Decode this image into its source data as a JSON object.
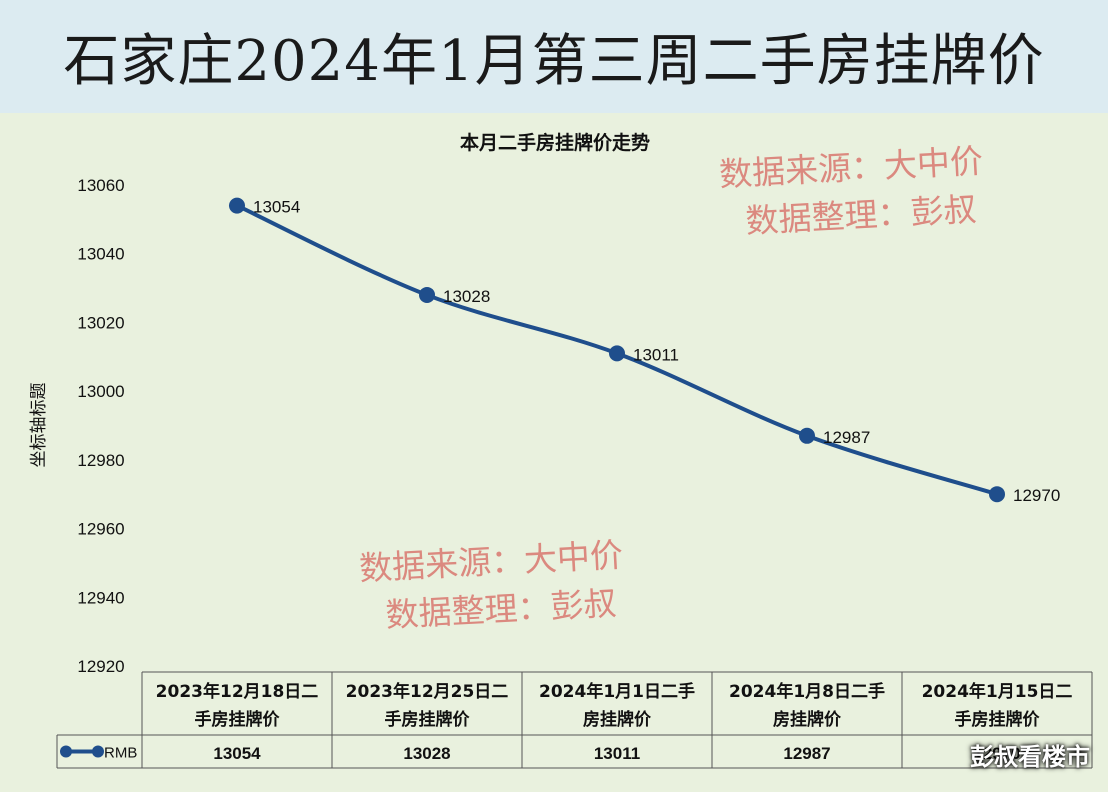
{
  "banner": {
    "title": "石家庄2024年1月第三周二手房挂牌价"
  },
  "watermark": {
    "line1": "数据来源：大中价",
    "line2": "数据整理：彭叔",
    "corner": "彭叔看楼市"
  },
  "chart_data": {
    "type": "line",
    "title": "本月二手房挂牌价走势",
    "ylabel": "坐标轴标题",
    "xlabel": "",
    "categories": [
      [
        "2023年12月18日二",
        "手房挂牌价"
      ],
      [
        "2023年12月25日二",
        "手房挂牌价"
      ],
      [
        "2024年1月1日二手",
        "房挂牌价"
      ],
      [
        "2024年1月8日二手",
        "房挂牌价"
      ],
      [
        "2024年1月15日二",
        "手房挂牌价"
      ]
    ],
    "series": [
      {
        "name": "RMB",
        "values": [
          13054,
          13028,
          13011,
          12987,
          12970
        ]
      }
    ],
    "ylim": [
      12920,
      13060
    ],
    "yticks": [
      13060,
      13040,
      13020,
      13000,
      12980,
      12960,
      12940,
      12920
    ],
    "data_labels": true,
    "data_table": true,
    "grid": false,
    "colors": {
      "line": "#1f4e8c",
      "marker": "#1f4e8c",
      "text": "#111111"
    }
  }
}
